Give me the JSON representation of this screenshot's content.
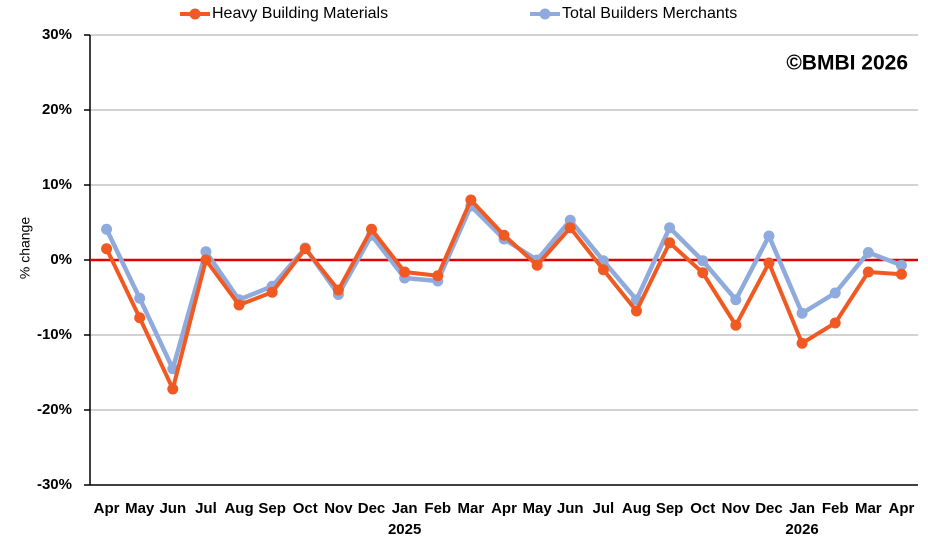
{
  "chart_data": {
    "type": "line",
    "y_label": "% change",
    "annotation": "©BMBI 2026",
    "categories": [
      "Apr",
      "May",
      "Jun",
      "Jul",
      "Aug",
      "Sep",
      "Oct",
      "Nov",
      "Dec",
      "Jan",
      "Feb",
      "Mar",
      "Apr",
      "May",
      "Jun",
      "Jul",
      "Aug",
      "Sep",
      "Oct",
      "Nov",
      "Dec",
      "Jan",
      "Feb",
      "Mar",
      "Apr"
    ],
    "years": [
      "2025",
      "2026"
    ],
    "series": [
      {
        "name": "Heavy Building Materials",
        "color": "#f05a22",
        "values": [
          1.5,
          -7.7,
          -17.2,
          0,
          -6,
          -4.3,
          1.5,
          -4,
          4.1,
          -1.6,
          -2.1,
          8,
          3.3,
          -0.7,
          4.3,
          -1.3,
          -6.8,
          2.3,
          -1.7,
          -8.7,
          -0.4,
          -11.1,
          -8.4,
          -1.6,
          -1.9
        ]
      },
      {
        "name": "Total Builders Merchants",
        "color": "#8faadc",
        "values": [
          4.1,
          -5.1,
          -14.5,
          1.1,
          -5.3,
          -3.5,
          1.6,
          -4.6,
          3.3,
          -2.4,
          -2.8,
          7.2,
          2.8,
          0,
          5.3,
          -0.1,
          -5.3,
          4.3,
          -0.1,
          -5.3,
          3.2,
          -7.1,
          -4.4,
          1,
          -0.7
        ]
      }
    ],
    "ylim": [
      -30,
      30
    ],
    "yticks": [
      {
        "value": -30,
        "label": "-30%"
      },
      {
        "value": -20,
        "label": "-20%"
      },
      {
        "value": -10,
        "label": "-10%"
      },
      {
        "value": 0,
        "label": "0%"
      },
      {
        "value": 10,
        "label": "10%"
      },
      {
        "value": 20,
        "label": "20%"
      },
      {
        "value": 30,
        "label": "30%"
      }
    ],
    "grid": true,
    "zero_line_color": "#e00000"
  }
}
